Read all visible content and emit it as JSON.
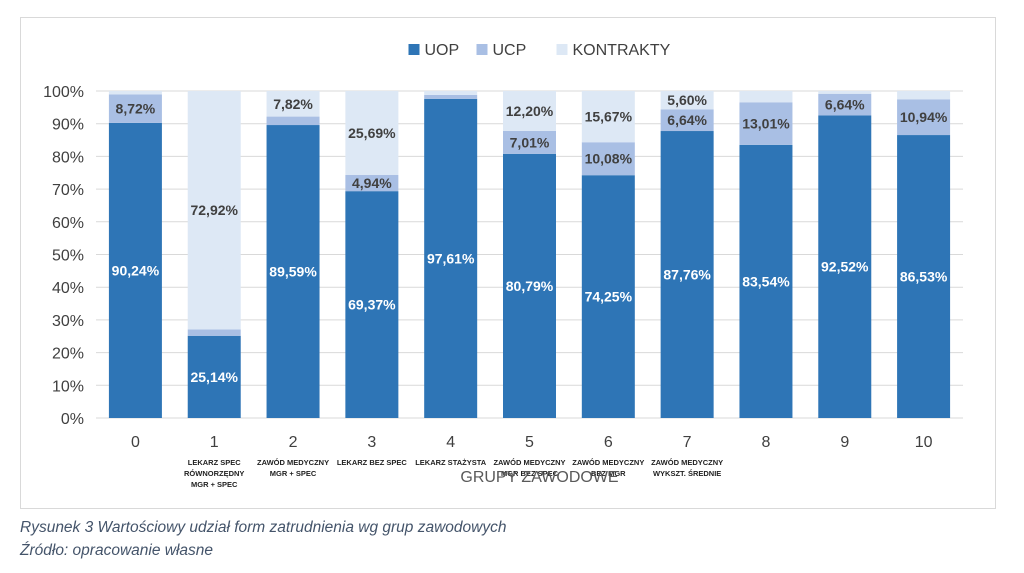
{
  "caption": {
    "figure": "Rysunek 3 Wartościowy udział form zatrudnienia wg grup zawodowych",
    "source": "Źródło: opracowanie własne"
  },
  "colors": {
    "UOP": "#2e75b6",
    "UCP": "#a9bfe4",
    "KONTRAKTY": "#dde8f5"
  },
  "chart_data": {
    "type": "bar",
    "stacked": true,
    "xlabel": "GRUPY ZAWODOWE",
    "ylabel": "",
    "ylim": [
      0,
      100
    ],
    "yticks": [
      "0%",
      "10%",
      "20%",
      "30%",
      "40%",
      "50%",
      "60%",
      "70%",
      "80%",
      "90%",
      "100%"
    ],
    "grid": true,
    "legend_position": "top",
    "categories": [
      "0",
      "1",
      "2",
      "3",
      "4",
      "5",
      "6",
      "7",
      "8",
      "9",
      "10"
    ],
    "category_sublabels": [
      [],
      [
        "LEKARZ SPEC",
        "RÓWNORZĘDNY",
        "MGR + SPEC"
      ],
      [
        "ZAWÓD MEDYCZNY",
        "MGR + SPEC"
      ],
      [
        "LEKARZ BEZ SPEC"
      ],
      [
        "LEKARZ STAŻYSTA"
      ],
      [
        "ZAWÓD MEDYCZNY",
        "MGR BEZ SPEC"
      ],
      [
        "ZAWÓD MEDYCZNY",
        "BEZ MGR"
      ],
      [
        "ZAWÓD MEDYCZNY",
        "WYKSZT. ŚREDNIE"
      ],
      [],
      [],
      []
    ],
    "series": [
      {
        "name": "UOP",
        "values": [
          90.24,
          25.14,
          89.59,
          69.37,
          97.61,
          80.79,
          74.25,
          87.76,
          83.54,
          92.52,
          86.53
        ],
        "labels": [
          "90,24%",
          "25,14%",
          "89,59%",
          "69,37%",
          "97,61%",
          "80,79%",
          "74,25%",
          "87,76%",
          "83,54%",
          "92,52%",
          "86,53%"
        ]
      },
      {
        "name": "UCP",
        "values": [
          8.72,
          1.94,
          2.59,
          4.94,
          1.2,
          7.01,
          10.08,
          6.64,
          13.01,
          6.64,
          10.94
        ],
        "labels": [
          "8,72%",
          "",
          "",
          "4,94%",
          "",
          "7,01%",
          "10,08%",
          "6,64%",
          "13,01%",
          "6,64%",
          "10,94%"
        ]
      },
      {
        "name": "KONTRAKTY",
        "values": [
          1.04,
          72.92,
          7.82,
          25.69,
          1.19,
          12.2,
          15.67,
          5.6,
          3.45,
          0.84,
          2.53
        ],
        "labels": [
          "",
          "72,92%",
          "7,82%",
          "25,69%",
          "",
          "12,20%",
          "15,67%",
          "5,60%",
          "",
          "",
          ""
        ]
      }
    ]
  }
}
